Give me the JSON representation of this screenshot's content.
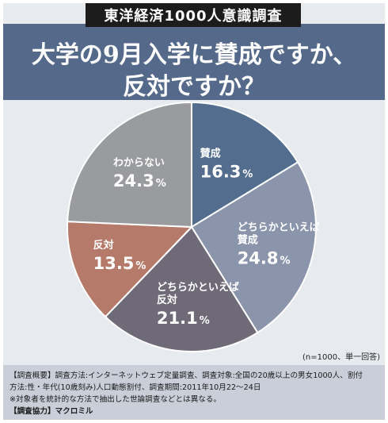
{
  "header": {
    "survey_label": "東洋経済1000人意識調査",
    "title_line1": "大学の9月入学に賛成ですか、",
    "title_line2": "反対ですか？"
  },
  "chart_data": {
    "type": "pie",
    "slices": [
      {
        "label_lines": [
          "賛成"
        ],
        "value": 16.3,
        "value_text": "16.3",
        "color": "#536d8e"
      },
      {
        "label_lines": [
          "どちらかといえば",
          "賛成"
        ],
        "value": 24.8,
        "value_text": "24.8",
        "color": "#8a94ab"
      },
      {
        "label_lines": [
          "どちらかといえば",
          "反対"
        ],
        "value": 21.1,
        "value_text": "21.1",
        "color": "#6f6a77"
      },
      {
        "label_lines": [
          "反対"
        ],
        "value": 13.5,
        "value_text": "13.5",
        "color": "#b57a69"
      },
      {
        "label_lines": [
          "わからない"
        ],
        "value": 24.3,
        "value_text": "24.3",
        "color": "#9a9b9e"
      }
    ],
    "unit": "%",
    "start": "top",
    "direction": "clockwise"
  },
  "note": {
    "sample": "(n=1000、単一回答)"
  },
  "footer": {
    "line1": "【調査概要】調査方法:インターネットウェブ定量調査、調査対象:全国の20歳以上の男女1000人、割付",
    "line2": "方法:性・年代(10歳刻み)人口動態割付、調査期間:2011年10月22〜24日",
    "line3": "※対象者を統計的な方法で抽出した世論調査などとは異なる。",
    "line4": "【調査協力】マクロミル"
  }
}
